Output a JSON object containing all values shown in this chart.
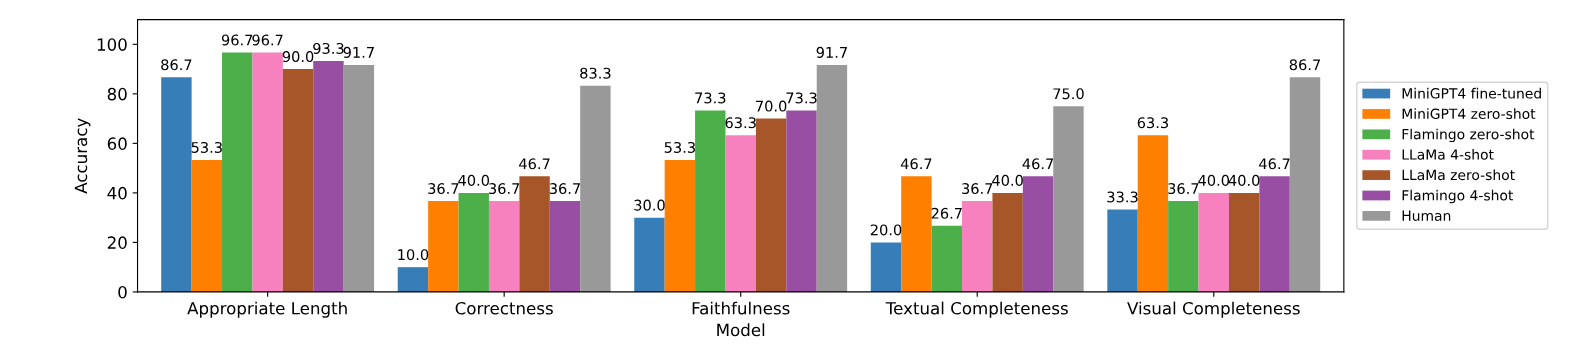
{
  "chart_data": {
    "type": "bar",
    "xlabel": "Model",
    "ylabel": "Accuracy",
    "categories": [
      "Appropriate Length",
      "Correctness",
      "Faithfulness",
      "Textual Completeness",
      "Visual Completeness"
    ],
    "ylim": [
      0,
      110
    ],
    "yticks": [
      0,
      20,
      40,
      60,
      80,
      100
    ],
    "grid": false,
    "legend": "right",
    "series": [
      {
        "name": "MiniGPT4 fine-tuned",
        "color": "#377eb8",
        "values": [
          86.7,
          10.0,
          30.0,
          20.0,
          33.3
        ],
        "value_labels": [
          "86.7",
          "10.0",
          "30.0",
          "20.0",
          "33.3"
        ]
      },
      {
        "name": "MiniGPT4 zero-shot",
        "color": "#ff7f00",
        "values": [
          53.3,
          36.7,
          53.3,
          46.7,
          63.3
        ],
        "value_labels": [
          "53.3",
          "36.7",
          "53.3",
          "46.7",
          "63.3"
        ]
      },
      {
        "name": "Flamingo zero-shot",
        "color": "#4daf4a",
        "values": [
          96.7,
          40.0,
          73.3,
          26.7,
          36.7
        ],
        "value_labels": [
          "96.7",
          "40.0",
          "73.3",
          "26.7",
          "36.7"
        ]
      },
      {
        "name": "LLaMa 4-shot",
        "color": "#f781bf",
        "values": [
          96.7,
          36.7,
          63.3,
          36.7,
          40.0
        ],
        "value_labels": [
          "96.7",
          "36.7",
          "63.3",
          "36.7",
          "40.0"
        ]
      },
      {
        "name": "LLaMa zero-shot",
        "color": "#a65628",
        "values": [
          90.0,
          46.7,
          70.0,
          40.0,
          40.0
        ],
        "value_labels": [
          "90.0",
          "46.7",
          "70.0",
          "40.0",
          "40.0"
        ]
      },
      {
        "name": "Flamingo 4-shot",
        "color": "#984ea3",
        "values": [
          93.3,
          36.7,
          73.3,
          46.7,
          46.7
        ],
        "value_labels": [
          "93.3",
          "36.7",
          "73.3",
          "46.7",
          "46.7"
        ]
      },
      {
        "name": "Human",
        "color": "#999999",
        "values": [
          91.7,
          83.3,
          91.7,
          75.0,
          86.7
        ],
        "value_labels": [
          "91.7",
          "83.3",
          "91.7",
          "75.0",
          "86.7"
        ]
      }
    ]
  }
}
